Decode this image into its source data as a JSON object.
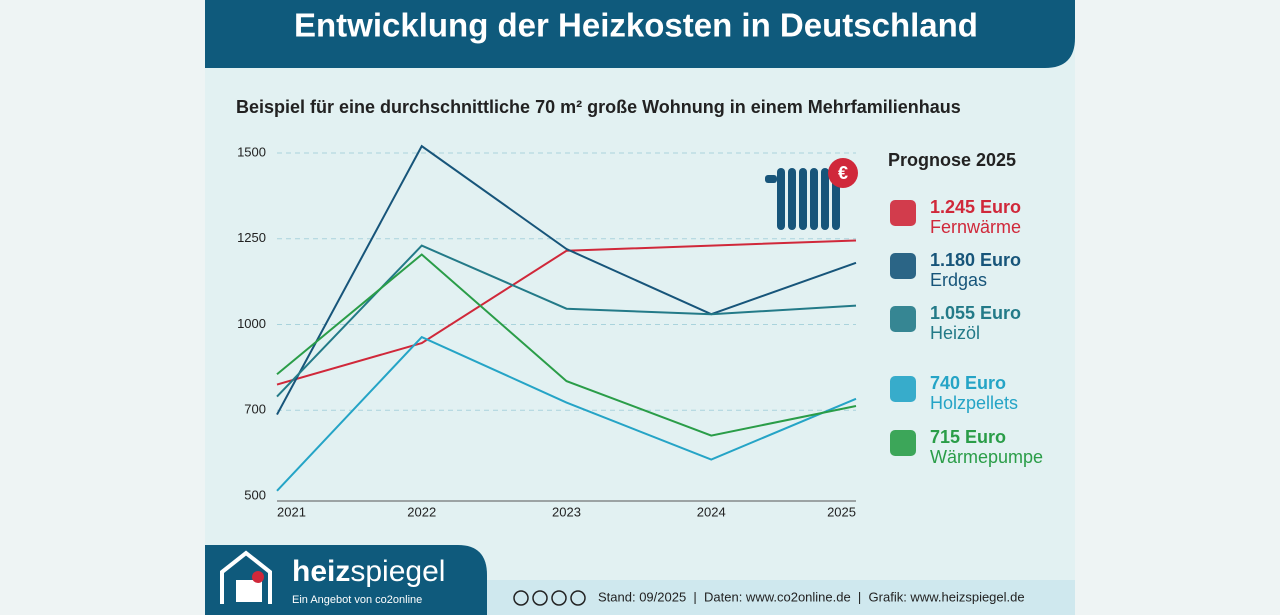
{
  "header": {
    "title": "Entwicklung der Heizkosten in Deutschland"
  },
  "chart_data": {
    "type": "line",
    "subtitle": "Beispiel für eine durchschnittliche 70 m² große Wohnung in einem Mehrfamilienhaus",
    "legend_title": "Prognose 2025",
    "categories": [
      "2021",
      "2022",
      "2023",
      "2024",
      "2025"
    ],
    "ylim": [
      500,
      1500
    ],
    "yticks": [
      500,
      700,
      1000,
      1250,
      1500
    ],
    "grid": true,
    "series": [
      {
        "name": "Fernwärme",
        "color": "#d0283a",
        "values": [
          790,
          935,
          1215,
          1230,
          1245
        ],
        "value_labels": [
          null,
          null,
          null,
          null,
          "1.245 Euro"
        ]
      },
      {
        "name": "Erdgas",
        "color": "#17557a",
        "values": [
          690,
          1520,
          1220,
          1030,
          1180
        ],
        "value_labels": [
          null,
          null,
          null,
          null,
          "1.180 Euro"
        ]
      },
      {
        "name": "Heizöl",
        "color": "#237a88",
        "values": [
          748,
          1230,
          1046,
          1030,
          1055
        ],
        "value_labels": [
          null,
          null,
          null,
          null,
          "1.055 Euro"
        ]
      },
      {
        "name": "Holzpellets",
        "color": "#25a4c6",
        "values": [
          512,
          956,
          727,
          585,
          740
        ],
        "value_labels": [
          null,
          null,
          null,
          null,
          "740 Euro"
        ]
      },
      {
        "name": "Wärmepumpe",
        "color": "#2a9d48",
        "values": [
          826,
          1204,
          802,
          641,
          715
        ],
        "value_labels": [
          null,
          null,
          null,
          null,
          "715 Euro"
        ]
      }
    ]
  },
  "footer": {
    "brand_a": "heiz",
    "brand_b": "spiegel",
    "tagline": "Ein Angebot von co2online",
    "credits": "Stand: 09/2025  |  Daten: www.co2online.de  |  Grafik: www.heizspiegel.de"
  }
}
